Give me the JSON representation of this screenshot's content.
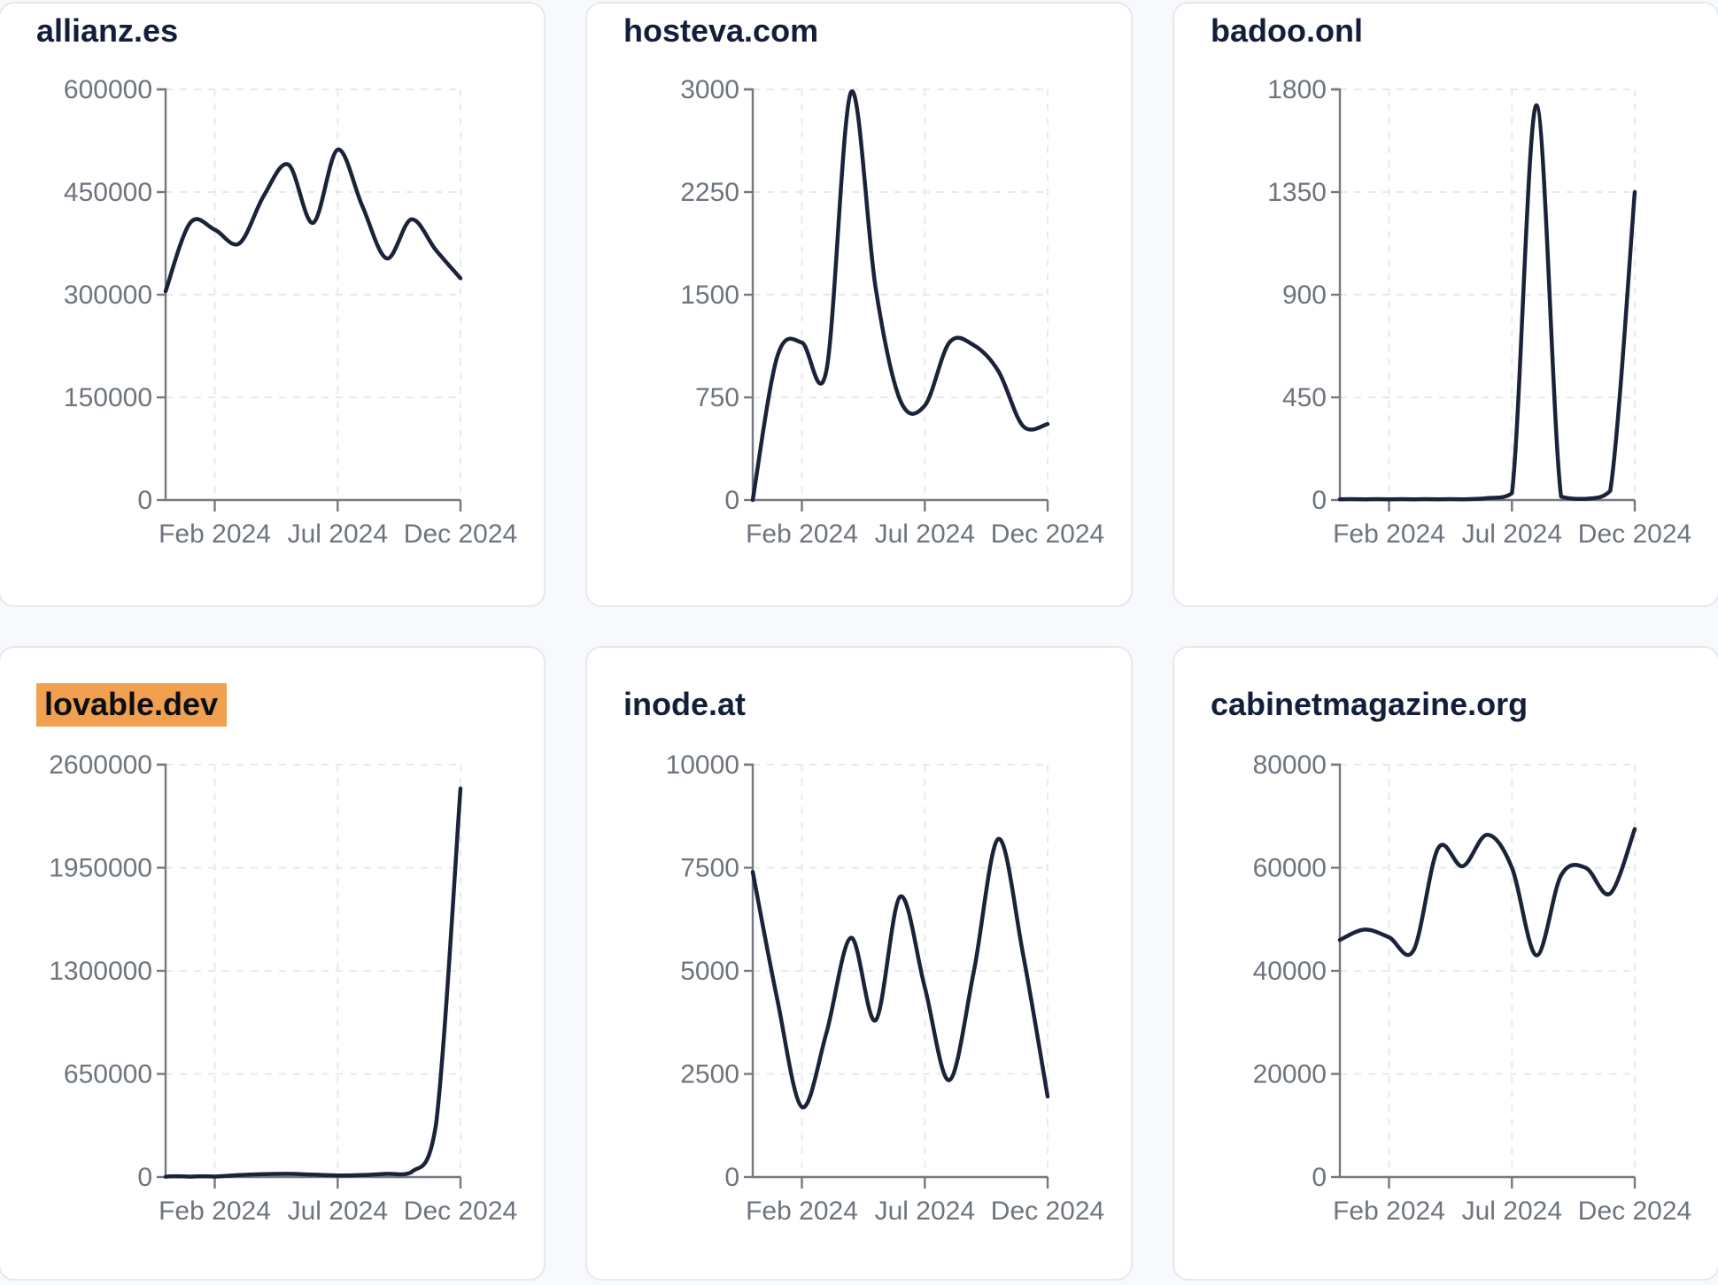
{
  "x_axis_ticks": [
    "Feb 2024",
    "Jul 2024",
    "Dec 2024"
  ],
  "colors": {
    "page_bg": "#f8f9fa",
    "card_bg": "#ffffff",
    "card_border": "#e5e8f0",
    "title_text": "#131e3a",
    "line": "#1b2338",
    "axis": "#75797f",
    "tick_label": "#6e747e",
    "gridline": "#e8e9ec",
    "highlight_bg": "#f0a04f",
    "highlight_text": "#0b0d12"
  },
  "chart_data": [
    {
      "type": "line",
      "title": "allianz.es",
      "highlighted": false,
      "x": [
        "Dec 2023",
        "Jan 2024",
        "Feb 2024",
        "Mar 2024",
        "Apr 2024",
        "May 2024",
        "Jun 2024",
        "Jul 2024",
        "Aug 2024",
        "Sep 2024",
        "Oct 2024",
        "Nov 2024",
        "Dec 2024"
      ],
      "values": [
        305000,
        405000,
        395000,
        375000,
        445000,
        490000,
        405000,
        512000,
        430000,
        353000,
        410000,
        365000,
        324000
      ],
      "y_ticks": [
        0,
        150000,
        300000,
        450000,
        600000
      ],
      "ylim": [
        0,
        600000
      ],
      "x_tick_labels": [
        "Feb 2024",
        "Jul 2024",
        "Dec 2024"
      ],
      "grid": "dashed",
      "legend": null
    },
    {
      "type": "line",
      "title": "hosteva.com",
      "highlighted": false,
      "x": [
        "Dec 2023",
        "Jan 2024",
        "Feb 2024",
        "Mar 2024",
        "Apr 2024",
        "May 2024",
        "Jun 2024",
        "Jul 2024",
        "Aug 2024",
        "Sep 2024",
        "Oct 2024",
        "Nov 2024",
        "Dec 2024"
      ],
      "values": [
        0,
        1050,
        1150,
        950,
        2980,
        1550,
        730,
        690,
        1150,
        1130,
        940,
        540,
        555
      ],
      "y_ticks": [
        0,
        750,
        1500,
        2250,
        3000
      ],
      "ylim": [
        0,
        3000
      ],
      "x_tick_labels": [
        "Feb 2024",
        "Jul 2024",
        "Dec 2024"
      ],
      "grid": "dashed",
      "legend": null
    },
    {
      "type": "line",
      "title": "badoo.onl",
      "highlighted": false,
      "x": [
        "Dec 2023",
        "Jan 2024",
        "Feb 2024",
        "Mar 2024",
        "Apr 2024",
        "May 2024",
        "Jun 2024",
        "Jul 2024",
        "Aug 2024",
        "Sep 2024",
        "Oct 2024",
        "Nov 2024",
        "Dec 2024"
      ],
      "values": [
        3,
        3,
        3,
        3,
        3,
        3,
        8,
        30,
        1730,
        15,
        5,
        40,
        1350
      ],
      "y_ticks": [
        0,
        450,
        900,
        1350,
        1800
      ],
      "ylim": [
        0,
        1800
      ],
      "x_tick_labels": [
        "Feb 2024",
        "Jul 2024",
        "Dec 2024"
      ],
      "grid": "dashed",
      "legend": null
    },
    {
      "type": "line",
      "title": "lovable.dev",
      "highlighted": true,
      "x": [
        "Dec 2023",
        "Jan 2024",
        "Feb 2024",
        "Mar 2024",
        "Apr 2024",
        "May 2024",
        "Jun 2024",
        "Jul 2024",
        "Aug 2024",
        "Sep 2024",
        "Oct 2024",
        "Nov 2024",
        "Dec 2024"
      ],
      "values": [
        1500,
        2000,
        3000,
        12000,
        18000,
        20000,
        15000,
        10000,
        12000,
        20000,
        30000,
        330000,
        2450000
      ],
      "y_ticks": [
        0,
        650000,
        1300000,
        1950000,
        2600000
      ],
      "ylim": [
        0,
        2600000
      ],
      "x_tick_labels": [
        "Feb 2024",
        "Jul 2024",
        "Dec 2024"
      ],
      "grid": "dashed",
      "legend": null
    },
    {
      "type": "line",
      "title": "inode.at",
      "highlighted": false,
      "x": [
        "Dec 2023",
        "Jan 2024",
        "Feb 2024",
        "Mar 2024",
        "Apr 2024",
        "May 2024",
        "Jun 2024",
        "Jul 2024",
        "Aug 2024",
        "Sep 2024",
        "Oct 2024",
        "Nov 2024",
        "Dec 2024"
      ],
      "values": [
        7400,
        4300,
        1700,
        3500,
        5800,
        3800,
        6800,
        4600,
        2350,
        5000,
        8200,
        5400,
        1950
      ],
      "y_ticks": [
        0,
        2500,
        5000,
        7500,
        10000
      ],
      "ylim": [
        0,
        10000
      ],
      "x_tick_labels": [
        "Feb 2024",
        "Jul 2024",
        "Dec 2024"
      ],
      "grid": "dashed",
      "legend": null
    },
    {
      "type": "line",
      "title": "cabinetmagazine.org",
      "highlighted": false,
      "x": [
        "Dec 2023",
        "Jan 2024",
        "Feb 2024",
        "Mar 2024",
        "Apr 2024",
        "May 2024",
        "Jun 2024",
        "Jul 2024",
        "Aug 2024",
        "Sep 2024",
        "Oct 2024",
        "Nov 2024",
        "Dec 2024"
      ],
      "values": [
        46000,
        48000,
        46500,
        44000,
        63800,
        60300,
        66400,
        60000,
        43000,
        58500,
        60000,
        55000,
        67500
      ],
      "y_ticks": [
        0,
        20000,
        40000,
        60000,
        80000
      ],
      "ylim": [
        0,
        80000
      ],
      "x_tick_labels": [
        "Feb 2024",
        "Jul 2024",
        "Dec 2024"
      ],
      "grid": "dashed",
      "legend": null
    }
  ]
}
